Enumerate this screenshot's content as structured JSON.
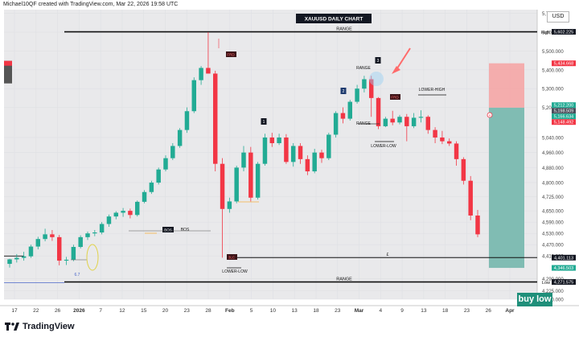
{
  "header": {
    "credit": "Michael10QF created with TradingView.com, Mar 22, 2026 19:58 UTC"
  },
  "footer": {
    "brand": "TradingView"
  },
  "currency": "USD",
  "buy_low_label": "buy low",
  "colors": {
    "up": "#22ab94",
    "down": "#f23645",
    "grid": "#dfe0e4",
    "bg": "#e9e9eb",
    "stop": "#f6a2a2",
    "target": "#7ab9b0"
  },
  "chart_data": {
    "type": "candlestick",
    "title": "XAUUSD DAILY CHART",
    "ylim": [
      4180,
      5720
    ],
    "grid": true,
    "y_ticks": [
      "5,700.000",
      "5,600.000",
      "5,500.000",
      "5,400.000",
      "5,300.000",
      "5,200.000",
      "5,040.000",
      "4,960.000",
      "4,880.000",
      "4,800.000",
      "4,725.000",
      "4,650.000",
      "4,590.000",
      "4,530.000",
      "4,470.000",
      "4,410.000",
      "4,290.000",
      "4,225.000",
      "4,180.000"
    ],
    "x_ticks": [
      "17",
      "22",
      "26",
      "2026",
      "7",
      "12",
      "15",
      "20",
      "23",
      "28",
      "Feb",
      "5",
      "10",
      "13",
      "18",
      "23",
      "Mar",
      "4",
      "9",
      "13",
      "18",
      "23",
      "26",
      "Apr"
    ],
    "candles": [
      [
        4368,
        4395,
        4348,
        4392
      ],
      [
        4392,
        4420,
        4375,
        4400
      ],
      [
        4400,
        4432,
        4385,
        4408
      ],
      [
        4408,
        4470,
        4400,
        4460
      ],
      [
        4460,
        4512,
        4445,
        4500
      ],
      [
        4500,
        4555,
        4488,
        4525
      ],
      [
        4525,
        4548,
        4490,
        4510
      ],
      [
        4510,
        4522,
        4360,
        4385
      ],
      [
        4385,
        4405,
        4362,
        4390
      ],
      [
        4390,
        4470,
        4382,
        4458
      ],
      [
        4458,
        4520,
        4450,
        4510
      ],
      [
        4510,
        4540,
        4495,
        4530
      ],
      [
        4530,
        4548,
        4515,
        4535
      ],
      [
        4535,
        4590,
        4525,
        4580
      ],
      [
        4580,
        4630,
        4565,
        4620
      ],
      [
        4620,
        4648,
        4605,
        4640
      ],
      [
        4640,
        4665,
        4618,
        4650
      ],
      [
        4650,
        4662,
        4610,
        4628
      ],
      [
        4628,
        4705,
        4620,
        4698
      ],
      [
        4698,
        4760,
        4690,
        4750
      ],
      [
        4750,
        4810,
        4740,
        4800
      ],
      [
        4800,
        4880,
        4790,
        4870
      ],
      [
        4870,
        4945,
        4860,
        4930
      ],
      [
        4930,
        5010,
        4920,
        4995
      ],
      [
        4995,
        5090,
        4985,
        5080
      ],
      [
        5080,
        5200,
        5065,
        5180
      ],
      [
        5180,
        5360,
        5170,
        5345
      ],
      [
        5345,
        5420,
        5320,
        5410
      ],
      [
        5410,
        5600,
        5390,
        5380
      ],
      [
        5380,
        5395,
        4860,
        4900
      ],
      [
        4900,
        4930,
        4401,
        4660
      ],
      [
        4660,
        4720,
        4640,
        4700
      ],
      [
        4700,
        4890,
        4690,
        4880
      ],
      [
        4880,
        4995,
        4860,
        4960
      ],
      [
        4960,
        4990,
        4700,
        4720
      ],
      [
        4720,
        4910,
        4710,
        4900
      ],
      [
        4900,
        5060,
        4890,
        5040
      ],
      [
        5040,
        5065,
        4990,
        5010
      ],
      [
        5010,
        5060,
        5000,
        5040
      ],
      [
        5040,
        5058,
        4900,
        4910
      ],
      [
        4910,
        5010,
        4885,
        4995
      ],
      [
        4995,
        5010,
        4900,
        4925
      ],
      [
        4925,
        4945,
        4840,
        4860
      ],
      [
        4860,
        4980,
        4850,
        4960
      ],
      [
        4960,
        4975,
        4905,
        4930
      ],
      [
        4930,
        5065,
        4920,
        5055
      ],
      [
        5055,
        5180,
        5040,
        5170
      ],
      [
        5170,
        5200,
        5115,
        5140
      ],
      [
        5140,
        5240,
        5130,
        5230
      ],
      [
        5230,
        5320,
        5220,
        5300
      ],
      [
        5300,
        5368,
        5280,
        5350
      ],
      [
        5350,
        5368,
        5150,
        5250
      ],
      [
        5250,
        5255,
        5085,
        5100
      ],
      [
        5100,
        5150,
        5095,
        5140
      ],
      [
        5140,
        5182,
        5105,
        5120
      ],
      [
        5120,
        5160,
        5110,
        5150
      ],
      [
        5150,
        5165,
        5020,
        5100
      ],
      [
        5100,
        5170,
        5090,
        5145
      ],
      [
        5145,
        5185,
        5120,
        5150
      ],
      [
        5150,
        5158,
        5060,
        5080
      ],
      [
        5080,
        5095,
        5010,
        5040
      ],
      [
        5040,
        5075,
        5005,
        5020
      ],
      [
        5020,
        5035,
        4995,
        5008
      ],
      [
        5008,
        5020,
        4890,
        4925
      ],
      [
        4925,
        4935,
        4790,
        4810
      ],
      [
        4810,
        4835,
        4600,
        4625
      ],
      [
        4625,
        4655,
        4510,
        4525
      ]
    ],
    "price_tags": [
      {
        "value": 5602.225,
        "label": "5,602.225",
        "prefix": "High",
        "color": "#131722"
      },
      {
        "value": 5434.668,
        "label": "5,434.668",
        "color": "#f23645"
      },
      {
        "value": 5212.2,
        "label": "5,212.200",
        "color": "#22ab94"
      },
      {
        "value": 5198.509,
        "label": "5,198.509",
        "color": "#4a4f5c"
      },
      {
        "value": 5166.634,
        "label": "5,166.634",
        "color": "#22ab94"
      },
      {
        "value": 5148.492,
        "label": "5,148.492",
        "color": "#f23645"
      },
      {
        "value": 4401.113,
        "label": "4,401.113",
        "color": "#131722"
      },
      {
        "value": 4346.503,
        "label": "4,346.503",
        "color": "#22ab94"
      },
      {
        "value": 4271.575,
        "label": "4,271.575",
        "prefix": "Low",
        "color": "#131722"
      }
    ],
    "left_tag": {
      "value": 5434.668,
      "label": "5,434.668"
    },
    "levels": [
      {
        "value": 5602.225,
        "label": "RANGE"
      },
      {
        "value": 4401.113,
        "label": ""
      },
      {
        "value": 4271.575,
        "label": "RANGE"
      }
    ],
    "annotations": [
      "BOS",
      "BOS",
      "RANGE",
      "RANGE",
      "FRD",
      "FRD",
      "1",
      "2",
      "3",
      "LOWER-HIGH",
      "LOWER-LOW",
      "LOWER-LOW",
      "3LC",
      "6.7",
      "£"
    ],
    "position": {
      "entry": 5198.509,
      "stop": 5434.668,
      "target": 4346.503
    }
  }
}
